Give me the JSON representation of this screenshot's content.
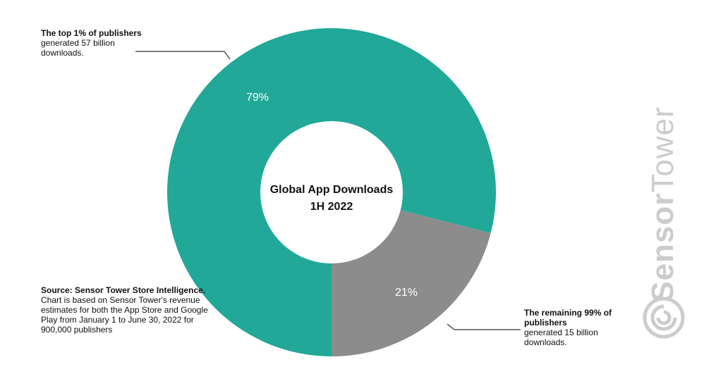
{
  "chart_data": {
    "type": "pie",
    "title": "Global App Downloads",
    "subtitle": "1H 2022",
    "slices": [
      {
        "label": "79%",
        "value": 79,
        "color": "#21a898"
      },
      {
        "label": "21%",
        "value": 21,
        "color": "#8c8c8c"
      }
    ],
    "annotations": {
      "top_bold": "The top 1% of publishers",
      "top_text": "generated 57 billion downloads.",
      "bottom_bold": "The remaining 99% of publishers",
      "bottom_text": "generated 15 billion downloads."
    },
    "source_bold": "Source: Sensor Tower Store Intelligence.",
    "source_text": "Chart is based on Sensor Tower's revenue estimates for both the App Store and Google Play from January 1 to June 30, 2022 for 900,000 publishers"
  },
  "watermark": {
    "bold": "Sensor",
    "light": "Tower",
    "icon": "sensor-tower-logo-icon",
    "color": "#cccccc"
  }
}
